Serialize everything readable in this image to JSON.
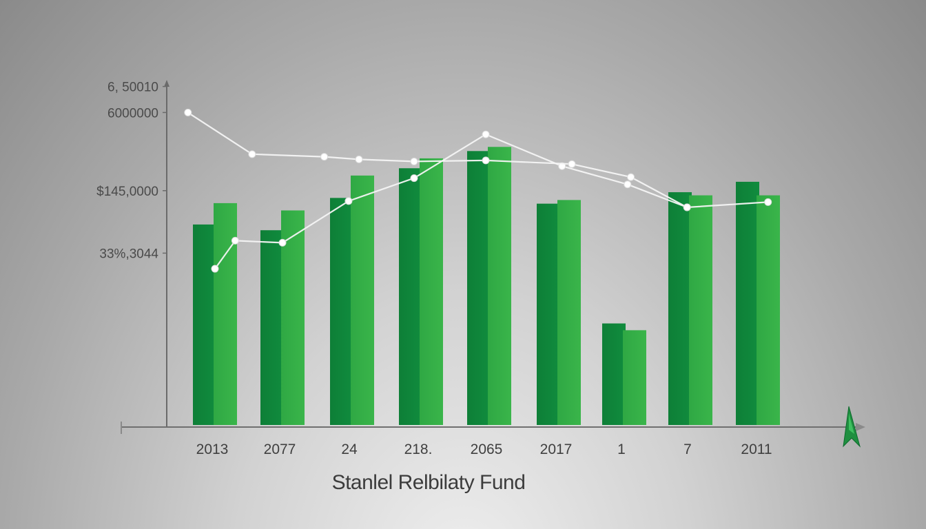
{
  "chart_data": {
    "type": "bar",
    "title": "Stanlel Relbilaty Fund",
    "categories": [
      "2013",
      "2077",
      "24",
      "218.",
      "2065",
      "2017",
      "1",
      "7",
      "2011"
    ],
    "y_tick_labels": [
      "6, 50010",
      "6000000",
      "$145,0000",
      "33%,3044"
    ],
    "y_tick_values": [
      6500000,
      6000000,
      4500000,
      3300000
    ],
    "ylim": [
      0,
      6600000
    ],
    "grid": false,
    "series": [
      {
        "values": [
          3850000,
          3740000,
          4360000,
          4930000,
          5260000,
          4250000,
          1950000,
          4470000,
          4670000
        ]
      },
      {
        "values": [
          4260000,
          4120000,
          4790000,
          5120000,
          5340000,
          4320000,
          1820000,
          4410000,
          4410000
        ]
      }
    ],
    "line_series": [
      {
        "points": [
          [
            0,
            3000000
          ],
          [
            0.3,
            3540000
          ],
          [
            1,
            3500000
          ],
          [
            1.95,
            4300000
          ],
          [
            2.9,
            4740000
          ],
          [
            3.95,
            5580000
          ],
          [
            5.05,
            4970000
          ],
          [
            6.05,
            4620000
          ],
          [
            6.95,
            4180000
          ],
          [
            8.15,
            4280000
          ]
        ]
      },
      {
        "points": [
          [
            -0.4,
            6000000
          ],
          [
            0.55,
            5200000
          ],
          [
            1.6,
            5150000
          ],
          [
            2.1,
            5100000
          ],
          [
            2.9,
            5060000
          ],
          [
            3.95,
            5080000
          ],
          [
            5.2,
            5010000
          ],
          [
            6.1,
            4760000
          ],
          [
            6.95,
            4180000
          ]
        ]
      }
    ],
    "colors": {
      "series_dark": "#108c3e",
      "series_light": "#3ab54a",
      "line": "#f4f4f4",
      "axis": "#6a6a6a",
      "arrow": "#1f8f40"
    }
  }
}
